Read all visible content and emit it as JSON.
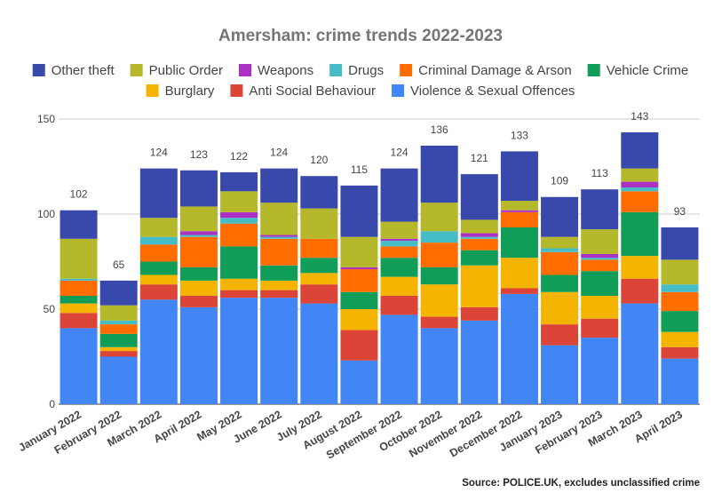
{
  "chart_data": {
    "type": "bar",
    "stacked": true,
    "title": "Amersham: crime trends 2022-2023",
    "source": "Source: POLICE.UK, excludes unclassified crime",
    "categories": [
      "January 2022",
      "February 2022",
      "March 2022",
      "April 2022",
      "May 2022",
      "June 2022",
      "July 2022",
      "August 2022",
      "September 2022",
      "October 2022",
      "November 2022",
      "December 2022",
      "January 2023",
      "February 2023",
      "March 2023",
      "April 2023"
    ],
    "totals": [
      "102",
      "65",
      "124",
      "123",
      "122",
      "124",
      "120",
      "115",
      "124",
      "136",
      "121",
      "133",
      "109",
      "113",
      "143",
      "93"
    ],
    "ylim": [
      0,
      150
    ],
    "yticks": [
      "0",
      "50",
      "100",
      "150"
    ],
    "grid": true,
    "legend_position": "top",
    "series": [
      {
        "name": "Violence & Sexual Offences",
        "color": "#4285F4",
        "values": [
          40,
          25,
          55,
          51,
          56,
          56,
          53,
          23,
          47,
          40,
          44,
          58,
          31,
          35,
          53,
          24
        ]
      },
      {
        "name": "Anti Social Behaviour",
        "color": "#DB4437",
        "values": [
          8,
          3,
          8,
          6,
          4,
          4,
          10,
          16,
          10,
          6,
          7,
          3,
          11,
          10,
          13,
          6
        ]
      },
      {
        "name": "Burglary",
        "color": "#F4B400",
        "values": [
          5,
          2,
          5,
          8,
          6,
          5,
          6,
          11,
          10,
          17,
          22,
          16,
          17,
          12,
          12,
          8
        ]
      },
      {
        "name": "Vehicle Crime",
        "color": "#0F9D58",
        "values": [
          4,
          7,
          7,
          7,
          17,
          8,
          8,
          9,
          10,
          9,
          8,
          16,
          9,
          13,
          23,
          11
        ]
      },
      {
        "name": "Criminal Damage & Arson",
        "color": "#FF6D01",
        "values": [
          8,
          5,
          9,
          16,
          12,
          14,
          10,
          12,
          6,
          13,
          6,
          8,
          12,
          6,
          11,
          10
        ]
      },
      {
        "name": "Drugs",
        "color": "#46BDC6",
        "values": [
          1,
          2,
          4,
          1,
          3,
          1,
          0,
          0,
          3,
          6,
          1,
          0,
          2,
          1,
          2,
          4
        ]
      },
      {
        "name": "Weapons",
        "color": "#AB30C4",
        "values": [
          0,
          0,
          0,
          2,
          3,
          1,
          0,
          1,
          1,
          0,
          2,
          1,
          0,
          2,
          3,
          0
        ]
      },
      {
        "name": "Public Order",
        "color": "#B4B82A",
        "values": [
          21,
          8,
          10,
          13,
          11,
          17,
          16,
          16,
          9,
          15,
          7,
          5,
          6,
          13,
          7,
          13
        ]
      },
      {
        "name": "Other theft",
        "color": "#3949AB",
        "values": [
          15,
          13,
          26,
          19,
          10,
          18,
          17,
          27,
          28,
          30,
          24,
          26,
          21,
          21,
          19,
          17
        ]
      }
    ],
    "legend_rows": [
      [
        "Other theft",
        "Public Order",
        "Weapons",
        "Drugs",
        "Criminal Damage & Arson",
        "Vehicle Crime"
      ],
      [
        "Burglary",
        "Anti Social Behaviour",
        "Violence & Sexual Offences"
      ]
    ]
  }
}
